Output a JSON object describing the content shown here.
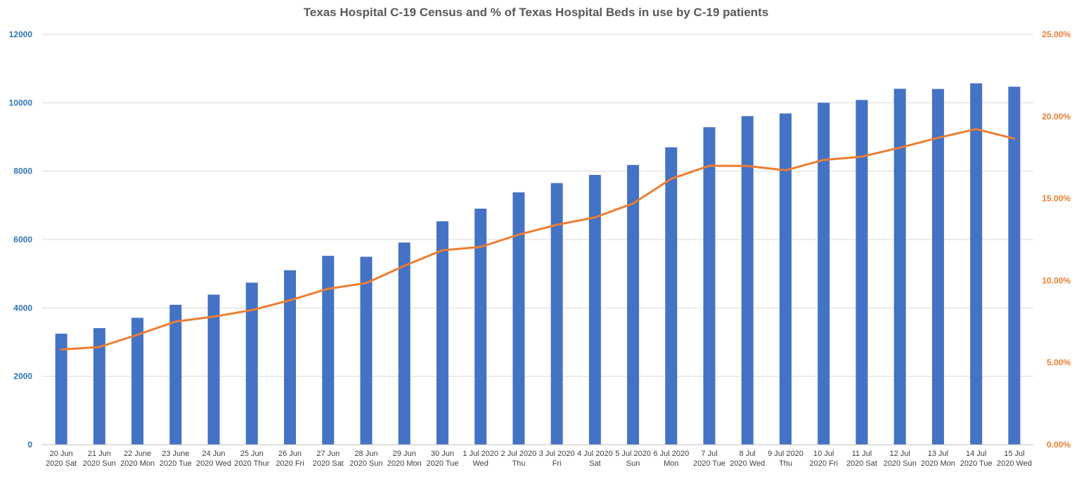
{
  "chart_data": {
    "type": "bar",
    "title": "Texas Hospital C-19 Census and % of Texas Hospital Beds in use by C-19 patients",
    "xlabel": "",
    "ylabel": "",
    "categories": [
      [
        "20 Jun",
        "2020 Sat"
      ],
      [
        "21 Jun",
        "2020 Sun"
      ],
      [
        "22 June",
        "2020 Mon"
      ],
      [
        "23 June",
        "2020 Tue"
      ],
      [
        "24 Jun",
        "2020 Wed"
      ],
      [
        "25 Jun",
        "2020 Thur"
      ],
      [
        "26 Jun",
        "2020 Fri"
      ],
      [
        "27 Jun",
        "2020 Sat"
      ],
      [
        "28 Jun",
        "2020 Sun"
      ],
      [
        "29 Jun",
        "2020 Mon"
      ],
      [
        "30 Jun",
        "2020 Tue"
      ],
      [
        "1 Jul 2020",
        "Wed"
      ],
      [
        "2 Jul 2020",
        "Thu"
      ],
      [
        "3 Jul 2020",
        "Fri"
      ],
      [
        "4 Jul 2020",
        "Sat"
      ],
      [
        "5 Jul 2020",
        "Sun"
      ],
      [
        "6 Jul 2020",
        "Mon"
      ],
      [
        "7 Jul",
        "2020 Tue"
      ],
      [
        "8 Jul",
        "2020 Wed"
      ],
      [
        "9 Jul 2020",
        "Thu"
      ],
      [
        "10 Jul",
        "2020 Fri"
      ],
      [
        "11 Jul",
        "2020 Sat"
      ],
      [
        "12 Jul",
        "2020 Sun"
      ],
      [
        "13 Jul",
        "2020 Mon"
      ],
      [
        "14 Jul",
        "2020 Tue"
      ],
      [
        "15 Jul",
        "2020 Wed"
      ]
    ],
    "series": [
      {
        "type": "bar",
        "axis": "left",
        "color": "#4472c4",
        "values": [
          3247,
          3409,
          3711,
          4092,
          4389,
          4739,
          5102,
          5523,
          5497,
          5913,
          6533,
          6904,
          7382,
          7652,
          7890,
          8181,
          8698,
          9286,
          9610,
          9689,
          10002,
          10083,
          10410,
          10405,
          10569,
          10471
        ]
      },
      {
        "type": "line",
        "axis": "right",
        "color": "#ed7d31",
        "values": [
          0.058,
          0.0595,
          0.067,
          0.075,
          0.078,
          0.082,
          0.088,
          0.095,
          0.0985,
          0.109,
          0.1185,
          0.1205,
          0.128,
          0.134,
          0.1385,
          0.147,
          0.162,
          0.17,
          0.1698,
          0.1672,
          0.1735,
          0.1755,
          0.181,
          0.187,
          0.1923,
          0.1865
        ]
      }
    ],
    "y_left": {
      "lim": [
        0,
        12000
      ],
      "ticks": [
        "0",
        "2000",
        "4000",
        "6000",
        "8000",
        "10000",
        "12000"
      ],
      "tick_color": "#2e75b6"
    },
    "y_right": {
      "lim": [
        0,
        0.25
      ],
      "ticks": [
        "0.00%",
        "5.00%",
        "10.00%",
        "15.00%",
        "20.00%",
        "25.00%"
      ],
      "tick_color": "#ed7d31"
    },
    "grid": true,
    "legend": "none"
  }
}
